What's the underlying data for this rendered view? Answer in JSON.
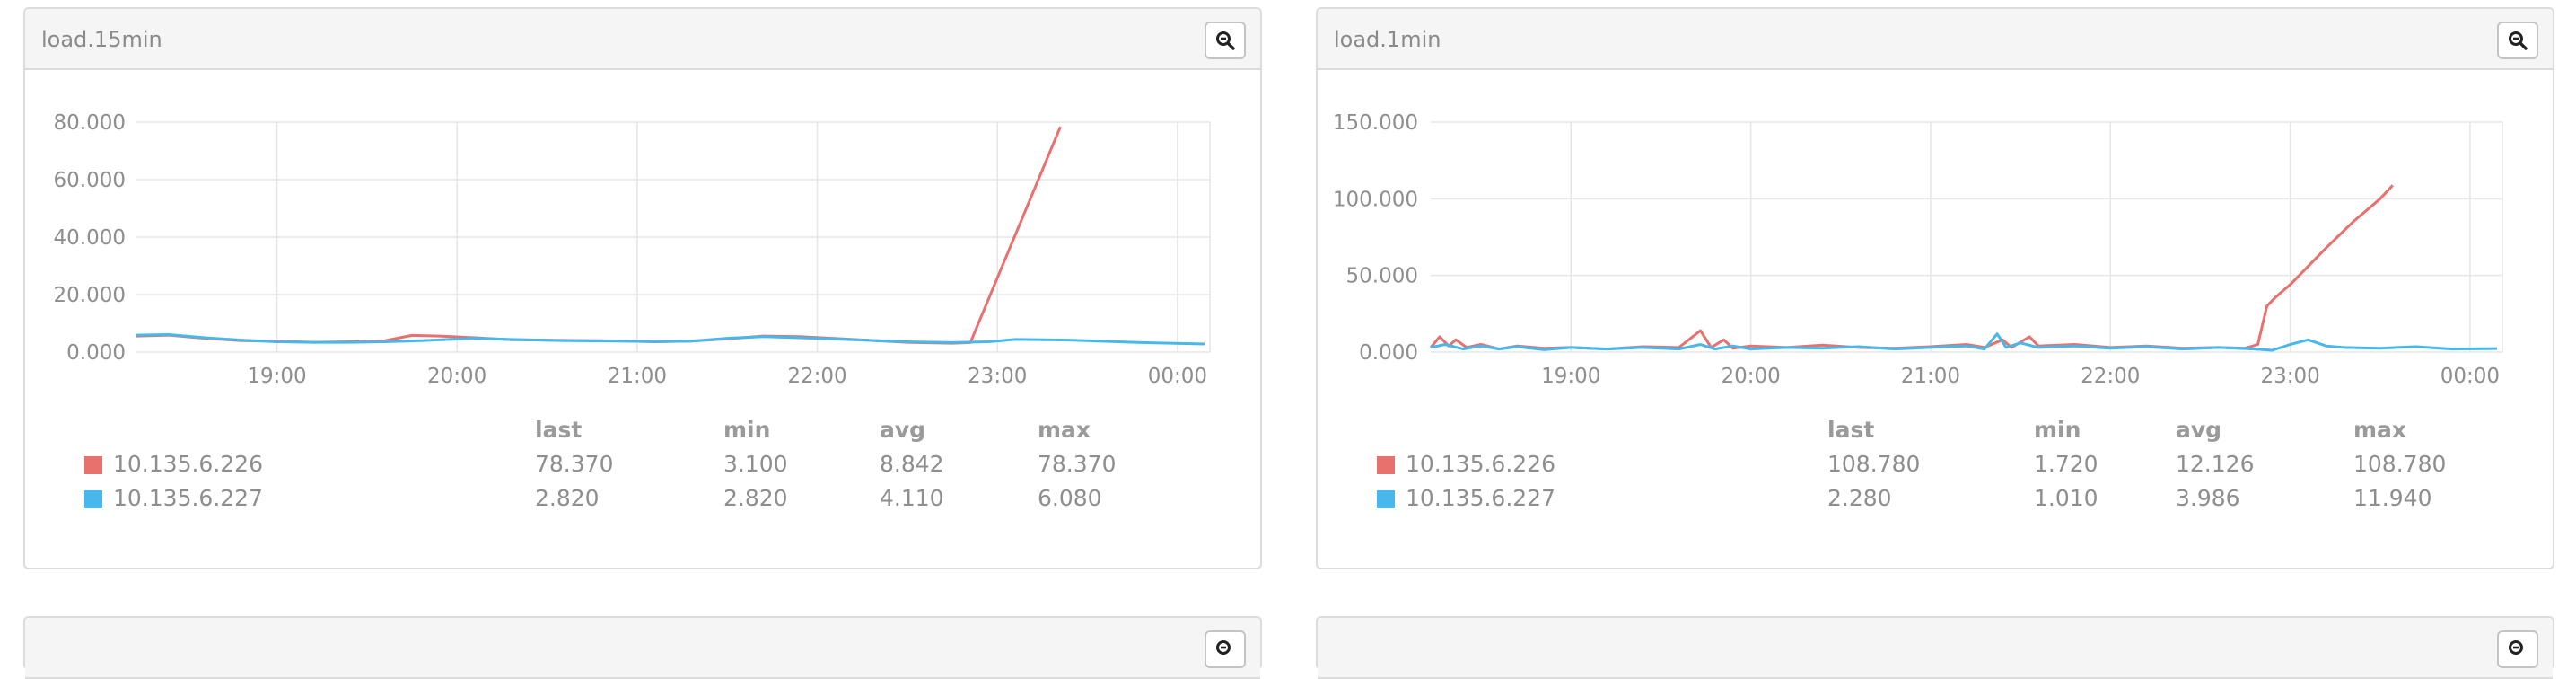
{
  "panels": [
    {
      "title": "load.15min",
      "zoom_icon": "zoom-out-icon",
      "chart_data": {
        "type": "line",
        "y_ticks": [
          "80.000",
          "60.000",
          "40.000",
          "20.000",
          "0.000"
        ],
        "x_ticks": [
          "19:00",
          "20:00",
          "21:00",
          "22:00",
          "23:00",
          "00:00"
        ],
        "ylim": [
          0,
          80
        ],
        "xlim_hours": [
          18.22,
          24.18
        ],
        "grid": true,
        "series": [
          {
            "name": "10.135.6.226",
            "color": "#e8706d",
            "points": [
              [
                18.22,
                5.6
              ],
              [
                18.4,
                5.9
              ],
              [
                18.6,
                4.8
              ],
              [
                18.8,
                4.0
              ],
              [
                19.0,
                3.8
              ],
              [
                19.2,
                3.4
              ],
              [
                19.4,
                3.6
              ],
              [
                19.6,
                4.0
              ],
              [
                19.75,
                5.8
              ],
              [
                19.9,
                5.6
              ],
              [
                20.1,
                5.0
              ],
              [
                20.3,
                4.3
              ],
              [
                20.6,
                4.1
              ],
              [
                20.9,
                3.9
              ],
              [
                21.1,
                3.6
              ],
              [
                21.3,
                3.8
              ],
              [
                21.5,
                4.6
              ],
              [
                21.7,
                5.6
              ],
              [
                21.9,
                5.4
              ],
              [
                22.2,
                4.4
              ],
              [
                22.5,
                3.4
              ],
              [
                22.75,
                3.1
              ],
              [
                22.85,
                3.3
              ],
              [
                23.35,
                78.37
              ]
            ]
          },
          {
            "name": "10.135.6.227",
            "color": "#47b8ec",
            "points": [
              [
                18.22,
                5.9
              ],
              [
                18.4,
                6.1
              ],
              [
                18.6,
                5.0
              ],
              [
                18.8,
                4.2
              ],
              [
                19.0,
                3.6
              ],
              [
                19.2,
                3.4
              ],
              [
                19.4,
                3.4
              ],
              [
                19.6,
                3.6
              ],
              [
                19.8,
                4.0
              ],
              [
                20.1,
                4.8
              ],
              [
                20.3,
                4.4
              ],
              [
                20.6,
                4.0
              ],
              [
                20.9,
                3.8
              ],
              [
                21.1,
                3.7
              ],
              [
                21.3,
                3.8
              ],
              [
                21.5,
                4.8
              ],
              [
                21.7,
                5.4
              ],
              [
                21.9,
                5.0
              ],
              [
                22.2,
                4.3
              ],
              [
                22.5,
                3.6
              ],
              [
                22.75,
                3.3
              ],
              [
                22.95,
                3.6
              ],
              [
                23.1,
                4.4
              ],
              [
                23.4,
                4.2
              ],
              [
                23.8,
                3.3
              ],
              [
                24.15,
                2.82
              ]
            ]
          }
        ]
      },
      "legend": {
        "headers": [
          "last",
          "min",
          "avg",
          "max"
        ],
        "rows": [
          {
            "name": "10.135.6.226",
            "color": "#e8706d",
            "values": [
              "78.370",
              "3.100",
              "8.842",
              "78.370"
            ]
          },
          {
            "name": "10.135.6.227",
            "color": "#47b8ec",
            "values": [
              "2.820",
              "2.820",
              "4.110",
              "6.080"
            ]
          }
        ]
      }
    },
    {
      "title": "load.1min",
      "zoom_icon": "zoom-out-icon",
      "chart_data": {
        "type": "line",
        "y_ticks": [
          "150.000",
          "100.000",
          "50.000",
          "0.000"
        ],
        "x_ticks": [
          "19:00",
          "20:00",
          "21:00",
          "22:00",
          "23:00",
          "00:00"
        ],
        "ylim": [
          0,
          150
        ],
        "xlim_hours": [
          18.22,
          24.18
        ],
        "grid": true,
        "series": [
          {
            "name": "10.135.6.226",
            "color": "#e8706d",
            "points": [
              [
                18.22,
                3
              ],
              [
                18.27,
                10
              ],
              [
                18.32,
                4
              ],
              [
                18.36,
                8
              ],
              [
                18.42,
                3
              ],
              [
                18.5,
                5
              ],
              [
                18.6,
                2
              ],
              [
                18.7,
                4
              ],
              [
                18.85,
                2.5
              ],
              [
                19.0,
                3
              ],
              [
                19.2,
                2
              ],
              [
                19.4,
                3.5
              ],
              [
                19.6,
                3
              ],
              [
                19.72,
                14
              ],
              [
                19.78,
                3
              ],
              [
                19.85,
                8
              ],
              [
                19.9,
                2.5
              ],
              [
                20.0,
                4
              ],
              [
                20.2,
                3
              ],
              [
                20.4,
                4.5
              ],
              [
                20.6,
                3
              ],
              [
                20.8,
                2.5
              ],
              [
                21.0,
                3.5
              ],
              [
                21.2,
                5
              ],
              [
                21.3,
                3
              ],
              [
                21.4,
                8
              ],
              [
                21.45,
                3
              ],
              [
                21.55,
                10
              ],
              [
                21.6,
                4
              ],
              [
                21.8,
                5
              ],
              [
                22.0,
                3
              ],
              [
                22.2,
                4
              ],
              [
                22.4,
                2.5
              ],
              [
                22.6,
                3
              ],
              [
                22.75,
                2.5
              ],
              [
                22.82,
                5
              ],
              [
                22.87,
                30
              ],
              [
                22.92,
                36
              ],
              [
                23.0,
                44
              ],
              [
                23.2,
                68
              ],
              [
                23.35,
                85
              ],
              [
                23.5,
                100
              ],
              [
                23.57,
                108.78
              ]
            ]
          },
          {
            "name": "10.135.6.227",
            "color": "#47b8ec",
            "points": [
              [
                18.22,
                3
              ],
              [
                18.3,
                5
              ],
              [
                18.4,
                2
              ],
              [
                18.5,
                4
              ],
              [
                18.6,
                2
              ],
              [
                18.7,
                3.5
              ],
              [
                18.85,
                1.5
              ],
              [
                19.0,
                3
              ],
              [
                19.2,
                2
              ],
              [
                19.4,
                3
              ],
              [
                19.6,
                2
              ],
              [
                19.72,
                5
              ],
              [
                19.8,
                2
              ],
              [
                19.9,
                4
              ],
              [
                20.0,
                2
              ],
              [
                20.2,
                3
              ],
              [
                20.4,
                2.5
              ],
              [
                20.6,
                3.5
              ],
              [
                20.8,
                2
              ],
              [
                21.0,
                3
              ],
              [
                21.2,
                4
              ],
              [
                21.3,
                2
              ],
              [
                21.37,
                11.9
              ],
              [
                21.42,
                3
              ],
              [
                21.5,
                6
              ],
              [
                21.6,
                3
              ],
              [
                21.8,
                4
              ],
              [
                22.0,
                2.5
              ],
              [
                22.2,
                3.5
              ],
              [
                22.4,
                2
              ],
              [
                22.6,
                3
              ],
              [
                22.8,
                2
              ],
              [
                22.9,
                1.2
              ],
              [
                23.0,
                5
              ],
              [
                23.1,
                8
              ],
              [
                23.2,
                4
              ],
              [
                23.3,
                3
              ],
              [
                23.5,
                2.5
              ],
              [
                23.7,
                3.5
              ],
              [
                23.9,
                2
              ],
              [
                24.15,
                2.28
              ]
            ]
          }
        ]
      },
      "legend": {
        "headers": [
          "last",
          "min",
          "avg",
          "max"
        ],
        "rows": [
          {
            "name": "10.135.6.226",
            "color": "#e8706d",
            "values": [
              "108.780",
              "1.720",
              "12.126",
              "108.780"
            ]
          },
          {
            "name": "10.135.6.227",
            "color": "#47b8ec",
            "values": [
              "2.280",
              "1.010",
              "3.986",
              "11.940"
            ]
          }
        ]
      }
    },
    {
      "title": "",
      "zoom_icon": "zoom-out-icon"
    },
    {
      "title": "",
      "zoom_icon": "zoom-out-icon"
    }
  ]
}
